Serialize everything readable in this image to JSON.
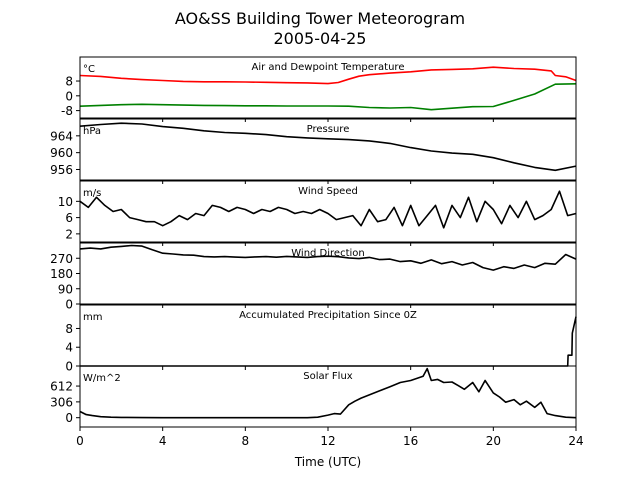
{
  "figure": {
    "title": "AO&SS Building Tower Meteorogram",
    "subtitle": "2005-04-25",
    "xlabel": "Time (UTC)"
  },
  "chart_data": {
    "type": "line",
    "xlim": [
      0,
      24
    ],
    "xticks": [
      0,
      4,
      8,
      12,
      16,
      20,
      24
    ],
    "panels": [
      {
        "id": "temperature",
        "title": "Air and Dewpoint Temperature",
        "unit": "°C",
        "ylim": [
          -12,
          21
        ],
        "yticks": [
          -8,
          0,
          8
        ],
        "series": [
          {
            "color": "#ff0000",
            "x": [
              0,
              1,
              2,
              3,
              4,
              5,
              6,
              7,
              8,
              9,
              10,
              11,
              12,
              12.5,
              13,
              13.5,
              14,
              15,
              16,
              17,
              18,
              19,
              20,
              21,
              22,
              22.8,
              23,
              23.5,
              24
            ],
            "y": [
              11,
              10.5,
              9.5,
              8.8,
              8.3,
              7.8,
              7.6,
              7.6,
              7.5,
              7.3,
              7.1,
              7.0,
              6.6,
              7.2,
              9.0,
              10.6,
              11.4,
              12.3,
              13.0,
              14.0,
              14.3,
              14.6,
              15.5,
              14.8,
              14.4,
              13.5,
              11.0,
              10.3,
              8.3
            ]
          },
          {
            "color": "#008000",
            "x": [
              0,
              1,
              2,
              3,
              4,
              5,
              6,
              7,
              8,
              9,
              10,
              11,
              12,
              13,
              14,
              15,
              16,
              17,
              18,
              19,
              20,
              21,
              22,
              23,
              24
            ],
            "y": [
              -5.6,
              -5.2,
              -4.8,
              -4.6,
              -4.8,
              -5.0,
              -5.2,
              -5.3,
              -5.4,
              -5.4,
              -5.5,
              -5.5,
              -5.5,
              -5.6,
              -6.3,
              -6.6,
              -6.3,
              -7.5,
              -6.7,
              -5.9,
              -5.8,
              -2.5,
              1.0,
              6.3,
              6.5
            ]
          }
        ]
      },
      {
        "id": "pressure",
        "title": "Pressure",
        "unit": "hPa",
        "ylim": [
          953.5,
          968
        ],
        "yticks": [
          956,
          960,
          964
        ],
        "series": [
          {
            "color": "#000000",
            "x": [
              0,
              1,
              2,
              3,
              4,
              5,
              6,
              7,
              8,
              9,
              10,
              11,
              12,
              13,
              14,
              15,
              16,
              17,
              18,
              19,
              20,
              21,
              22,
              23,
              24
            ],
            "y": [
              966.3,
              966.7,
              967.0,
              966.8,
              966.2,
              965.8,
              965.2,
              964.8,
              964.6,
              964.3,
              963.8,
              963.5,
              963.3,
              963.1,
              962.8,
              962.2,
              961.2,
              960.4,
              959.9,
              959.6,
              958.8,
              957.6,
              956.5,
              955.8,
              956.8
            ]
          }
        ]
      },
      {
        "id": "wind_speed",
        "title": "Wind Speed",
        "unit": "m/s",
        "ylim": [
          0,
          15
        ],
        "yticks": [
          2,
          6,
          10
        ],
        "series": [
          {
            "color": "#000000",
            "x": [
              0,
              0.4,
              0.8,
              1.2,
              1.6,
              2,
              2.4,
              2.8,
              3.2,
              3.6,
              4,
              4.4,
              4.8,
              5.2,
              5.6,
              6,
              6.4,
              6.8,
              7.2,
              7.6,
              8,
              8.4,
              8.8,
              9.2,
              9.6,
              10,
              10.4,
              10.8,
              11.2,
              11.6,
              12,
              12.4,
              12.8,
              13.2,
              13.6,
              14,
              14.4,
              14.8,
              15.2,
              15.6,
              16,
              16.4,
              16.8,
              17.2,
              17.6,
              18,
              18.4,
              18.8,
              19.2,
              19.6,
              20,
              20.4,
              20.8,
              21.2,
              21.6,
              22,
              22.4,
              22.8,
              23.2,
              23.6,
              24
            ],
            "y": [
              10,
              8.5,
              11,
              9,
              7.5,
              8,
              6,
              5.5,
              5,
              5,
              4,
              5,
              6.5,
              5.5,
              7,
              6.5,
              9,
              8.5,
              7.5,
              8.5,
              8,
              7,
              8,
              7.5,
              8.5,
              8,
              7,
              7.5,
              7,
              8,
              7,
              5.5,
              6,
              6.5,
              4,
              8,
              5,
              5.5,
              8.5,
              4,
              9,
              4,
              6.5,
              9,
              3.5,
              9,
              6,
              11,
              5,
              10,
              8,
              4.5,
              9,
              6,
              10,
              5.5,
              6.5,
              8,
              12.5,
              6.5,
              7
            ]
          }
        ]
      },
      {
        "id": "wind_direction",
        "title": "Wind Direction",
        "unit": "",
        "ylim": [
          0,
          360
        ],
        "yticks": [
          0,
          90,
          180,
          270
        ],
        "series": [
          {
            "color": "#000000",
            "x": [
              0,
              0.5,
              1,
              1.5,
              2,
              2.5,
              3,
              3.5,
              4,
              4.5,
              5,
              5.5,
              6,
              6.5,
              7,
              7.5,
              8,
              8.5,
              9,
              9.5,
              10,
              10.5,
              11,
              11.5,
              12,
              12.5,
              13,
              13.5,
              14,
              14.5,
              15,
              15.5,
              16,
              16.5,
              17,
              17.5,
              18,
              18.5,
              19,
              19.5,
              20,
              20.5,
              21,
              21.5,
              22,
              22.5,
              23,
              23.5,
              24
            ],
            "y": [
              325,
              330,
              325,
              335,
              340,
              345,
              342,
              320,
              300,
              295,
              290,
              288,
              280,
              278,
              280,
              277,
              275,
              278,
              280,
              276,
              281,
              278,
              275,
              280,
              282,
              279,
              272,
              268,
              275,
              262,
              265,
              250,
              255,
              240,
              260,
              238,
              250,
              230,
              245,
              215,
              200,
              220,
              210,
              230,
              215,
              240,
              235,
              292,
              265
            ]
          }
        ]
      },
      {
        "id": "precipitation",
        "title": "Accumulated Precipitation Since 0Z",
        "unit": "mm",
        "ylim": [
          0,
          13
        ],
        "yticks": [
          0,
          4,
          8
        ],
        "series": [
          {
            "color": "#000000",
            "x": [
              0,
              23.6,
              23.62,
              23.8,
              23.82,
              24
            ],
            "y": [
              0,
              0,
              2.3,
              2.3,
              7.0,
              10.5
            ]
          }
        ]
      },
      {
        "id": "solar",
        "title": "Solar Flux",
        "unit": "W/m^2",
        "ylim": [
          -180,
          1000
        ],
        "yticks": [
          0,
          306,
          612
        ],
        "series": [
          {
            "color": "#000000",
            "x": [
              0,
              0.3,
              0.6,
              1,
              1.5,
              2,
              3,
              4,
              5,
              6,
              7,
              8,
              9,
              10,
              11,
              11.5,
              12,
              12.3,
              12.6,
              13,
              13.3,
              13.6,
              14,
              14.5,
              15,
              15.5,
              16,
              16.3,
              16.6,
              16.8,
              17,
              17.3,
              17.6,
              18,
              18.3,
              18.6,
              19,
              19.3,
              19.6,
              20,
              20.3,
              20.6,
              21,
              21.3,
              21.6,
              22,
              22.3,
              22.6,
              23,
              23.5,
              24
            ],
            "y": [
              120,
              60,
              40,
              20,
              10,
              5,
              2,
              0,
              0,
              0,
              0,
              0,
              0,
              0,
              0,
              10,
              50,
              80,
              70,
              250,
              320,
              380,
              440,
              520,
              600,
              680,
              720,
              760,
              800,
              950,
              720,
              740,
              680,
              690,
              620,
              550,
              680,
              500,
              720,
              480,
              400,
              300,
              350,
              250,
              320,
              200,
              300,
              80,
              40,
              10,
              0
            ]
          }
        ]
      }
    ]
  }
}
